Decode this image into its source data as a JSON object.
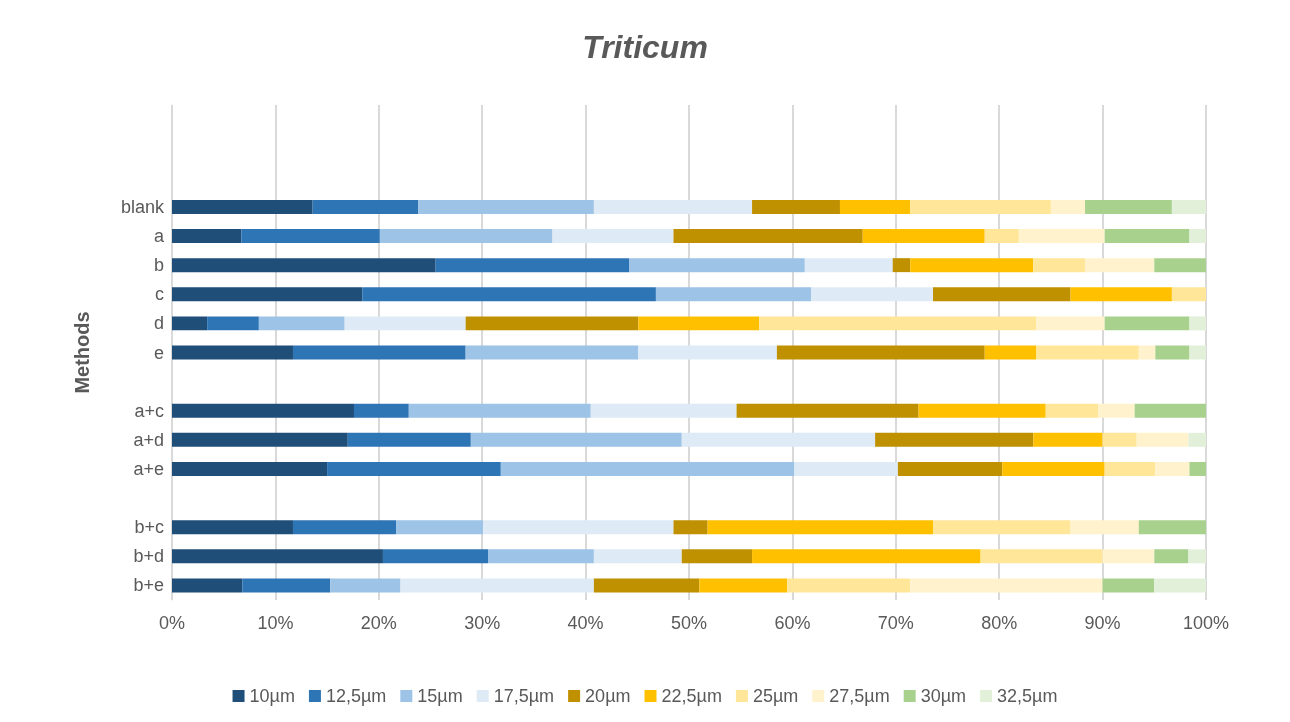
{
  "chart_data": {
    "type": "bar",
    "orientation": "horizontal",
    "stacked": true,
    "title": "Triticum",
    "ylabel": "Methods",
    "categories": [
      null,
      null,
      null,
      "blank",
      "a",
      "b",
      "c",
      "d",
      "e",
      null,
      "a+c",
      "a+d",
      "a+e",
      null,
      "b+c",
      "b+d",
      "b+e"
    ],
    "series": [
      {
        "name": "10µm",
        "color": "#1f4e79",
        "values": [
          null,
          null,
          null,
          13.6,
          6.7,
          25.5,
          18.4,
          3.4,
          11.7,
          null,
          17.6,
          17.0,
          15.0,
          null,
          11.7,
          20.4,
          6.8
        ]
      },
      {
        "name": "12,5µm",
        "color": "#2e75b6",
        "values": [
          null,
          null,
          null,
          10.2,
          13.4,
          18.7,
          28.4,
          5.0,
          16.7,
          null,
          5.3,
          11.9,
          16.8,
          null,
          10.0,
          10.2,
          8.5
        ]
      },
      {
        "name": "15µm",
        "color": "#9dc3e6",
        "values": [
          null,
          null,
          null,
          17.0,
          16.7,
          17.0,
          15.0,
          8.3,
          16.7,
          null,
          17.6,
          20.4,
          28.4,
          null,
          8.4,
          10.2,
          6.8
        ]
      },
      {
        "name": "17,5µm",
        "color": "#deebf7",
        "values": [
          null,
          null,
          null,
          15.3,
          11.7,
          8.5,
          11.8,
          11.7,
          13.4,
          null,
          14.1,
          18.7,
          10.0,
          null,
          18.4,
          8.5,
          18.7
        ]
      },
      {
        "name": "20µm",
        "color": "#bf9000",
        "values": [
          null,
          null,
          null,
          8.5,
          18.3,
          1.7,
          13.3,
          16.7,
          20.1,
          null,
          17.6,
          15.3,
          10.1,
          null,
          3.3,
          6.8,
          10.2
        ]
      },
      {
        "name": "22,5µm",
        "color": "#ffc000",
        "values": [
          null,
          null,
          null,
          6.8,
          11.8,
          11.9,
          9.8,
          11.7,
          5.0,
          null,
          12.3,
          6.7,
          9.9,
          null,
          21.8,
          22.1,
          8.5
        ]
      },
      {
        "name": "25µm",
        "color": "#ffe699",
        "values": [
          null,
          null,
          null,
          13.6,
          3.3,
          5.0,
          3.3,
          26.8,
          9.9,
          null,
          5.1,
          3.3,
          4.9,
          null,
          13.3,
          11.8,
          11.9
        ]
      },
      {
        "name": "27,5µm",
        "color": "#fff2cc",
        "values": [
          null,
          null,
          null,
          3.3,
          8.3,
          6.7,
          0,
          6.6,
          1.6,
          null,
          3.5,
          5.0,
          3.3,
          null,
          6.6,
          5.0,
          18.6
        ]
      },
      {
        "name": "30µm",
        "color": "#a9d18e",
        "values": [
          null,
          null,
          null,
          8.4,
          8.2,
          5.0,
          0,
          8.2,
          3.3,
          null,
          6.9,
          0,
          1.6,
          null,
          6.5,
          3.3,
          5.0
        ]
      },
      {
        "name": "32,5µm",
        "color": "#e2f0d9",
        "values": [
          null,
          null,
          null,
          3.3,
          1.6,
          0,
          0,
          1.6,
          1.6,
          null,
          0,
          1.7,
          0,
          null,
          0,
          1.7,
          5.0
        ]
      }
    ],
    "xlim": [
      0,
      100
    ],
    "xticks": [
      {
        "value": 0,
        "label": "0%"
      },
      {
        "value": 10,
        "label": "10%"
      },
      {
        "value": 20,
        "label": "20%"
      },
      {
        "value": 30,
        "label": "30%"
      },
      {
        "value": 40,
        "label": "40%"
      },
      {
        "value": 50,
        "label": "50%"
      },
      {
        "value": 60,
        "label": "60%"
      },
      {
        "value": 70,
        "label": "70%"
      },
      {
        "value": 80,
        "label": "80%"
      },
      {
        "value": 90,
        "label": "90%"
      },
      {
        "value": 100,
        "label": "100%"
      }
    ],
    "grid": "x",
    "legend": "bottom"
  }
}
